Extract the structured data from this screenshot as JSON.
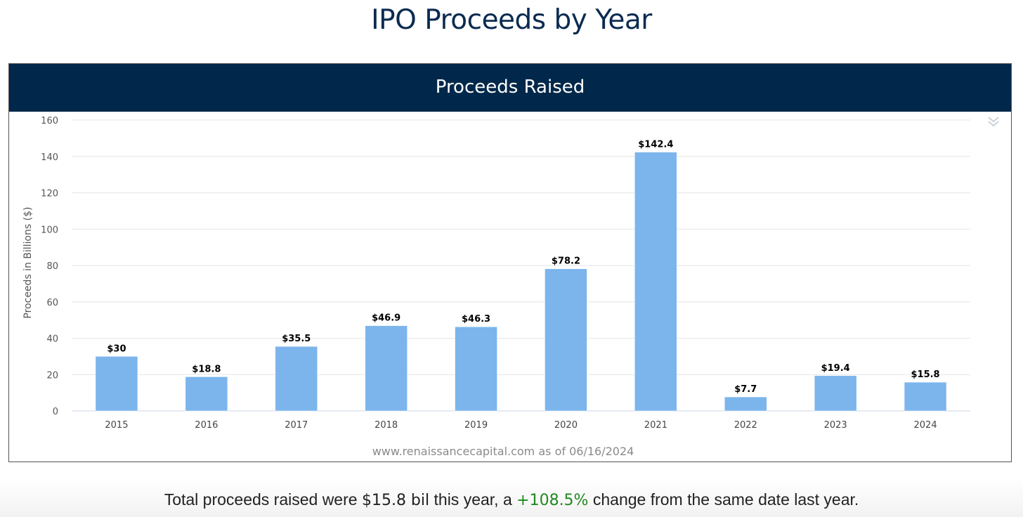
{
  "page": {
    "title": "IPO Proceeds by Year"
  },
  "panel": {
    "header": "Proceeds Raised",
    "menu_icon": "double-chevron-down-icon"
  },
  "summary": {
    "prefix": "Total proceeds raised were",
    "amount": "$15.8 bil",
    "middle": "this year, a",
    "change": "+108.5%",
    "suffix": "change from the same date last year.",
    "change_color": "#1f8a1f"
  },
  "chart_data": {
    "type": "bar",
    "title": "Proceeds Raised",
    "ylabel": "Proceeds in Billions ($)",
    "xlabel": "",
    "categories": [
      "2015",
      "2016",
      "2017",
      "2018",
      "2019",
      "2020",
      "2021",
      "2022",
      "2023",
      "2024"
    ],
    "values": [
      30,
      18.8,
      35.5,
      46.9,
      46.3,
      78.2,
      142.4,
      7.7,
      19.4,
      15.8
    ],
    "data_labels": [
      "$30",
      "$18.8",
      "$35.5",
      "$46.9",
      "$46.3",
      "$78.2",
      "$142.4",
      "$7.7",
      "$19.4",
      "$15.8"
    ],
    "ylim": [
      0,
      160
    ],
    "yticks": [
      "0",
      "20",
      "40",
      "60",
      "80",
      "100",
      "120",
      "140",
      "160"
    ],
    "grid": true,
    "bar_color": "#7cb5ec",
    "credit": "www.renaissancecapital.com as of 06/16/2024"
  }
}
